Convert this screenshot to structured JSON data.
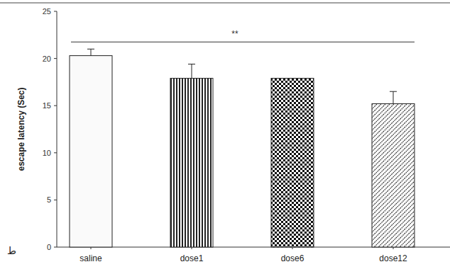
{
  "chart_data": {
    "type": "bar",
    "y_label": "escape latency (Sec)",
    "categories": [
      "saline",
      "dose1",
      "dose6",
      "dose12"
    ],
    "values": [
      20.3,
      17.9,
      17.9,
      15.2
    ],
    "errors": [
      0.7,
      1.5,
      0,
      1.3
    ],
    "ylim": [
      0,
      25
    ],
    "yticks": [
      0,
      5,
      10,
      15,
      20,
      25
    ],
    "grid": false,
    "annotations": [
      "**",
      "ط"
    ]
  }
}
